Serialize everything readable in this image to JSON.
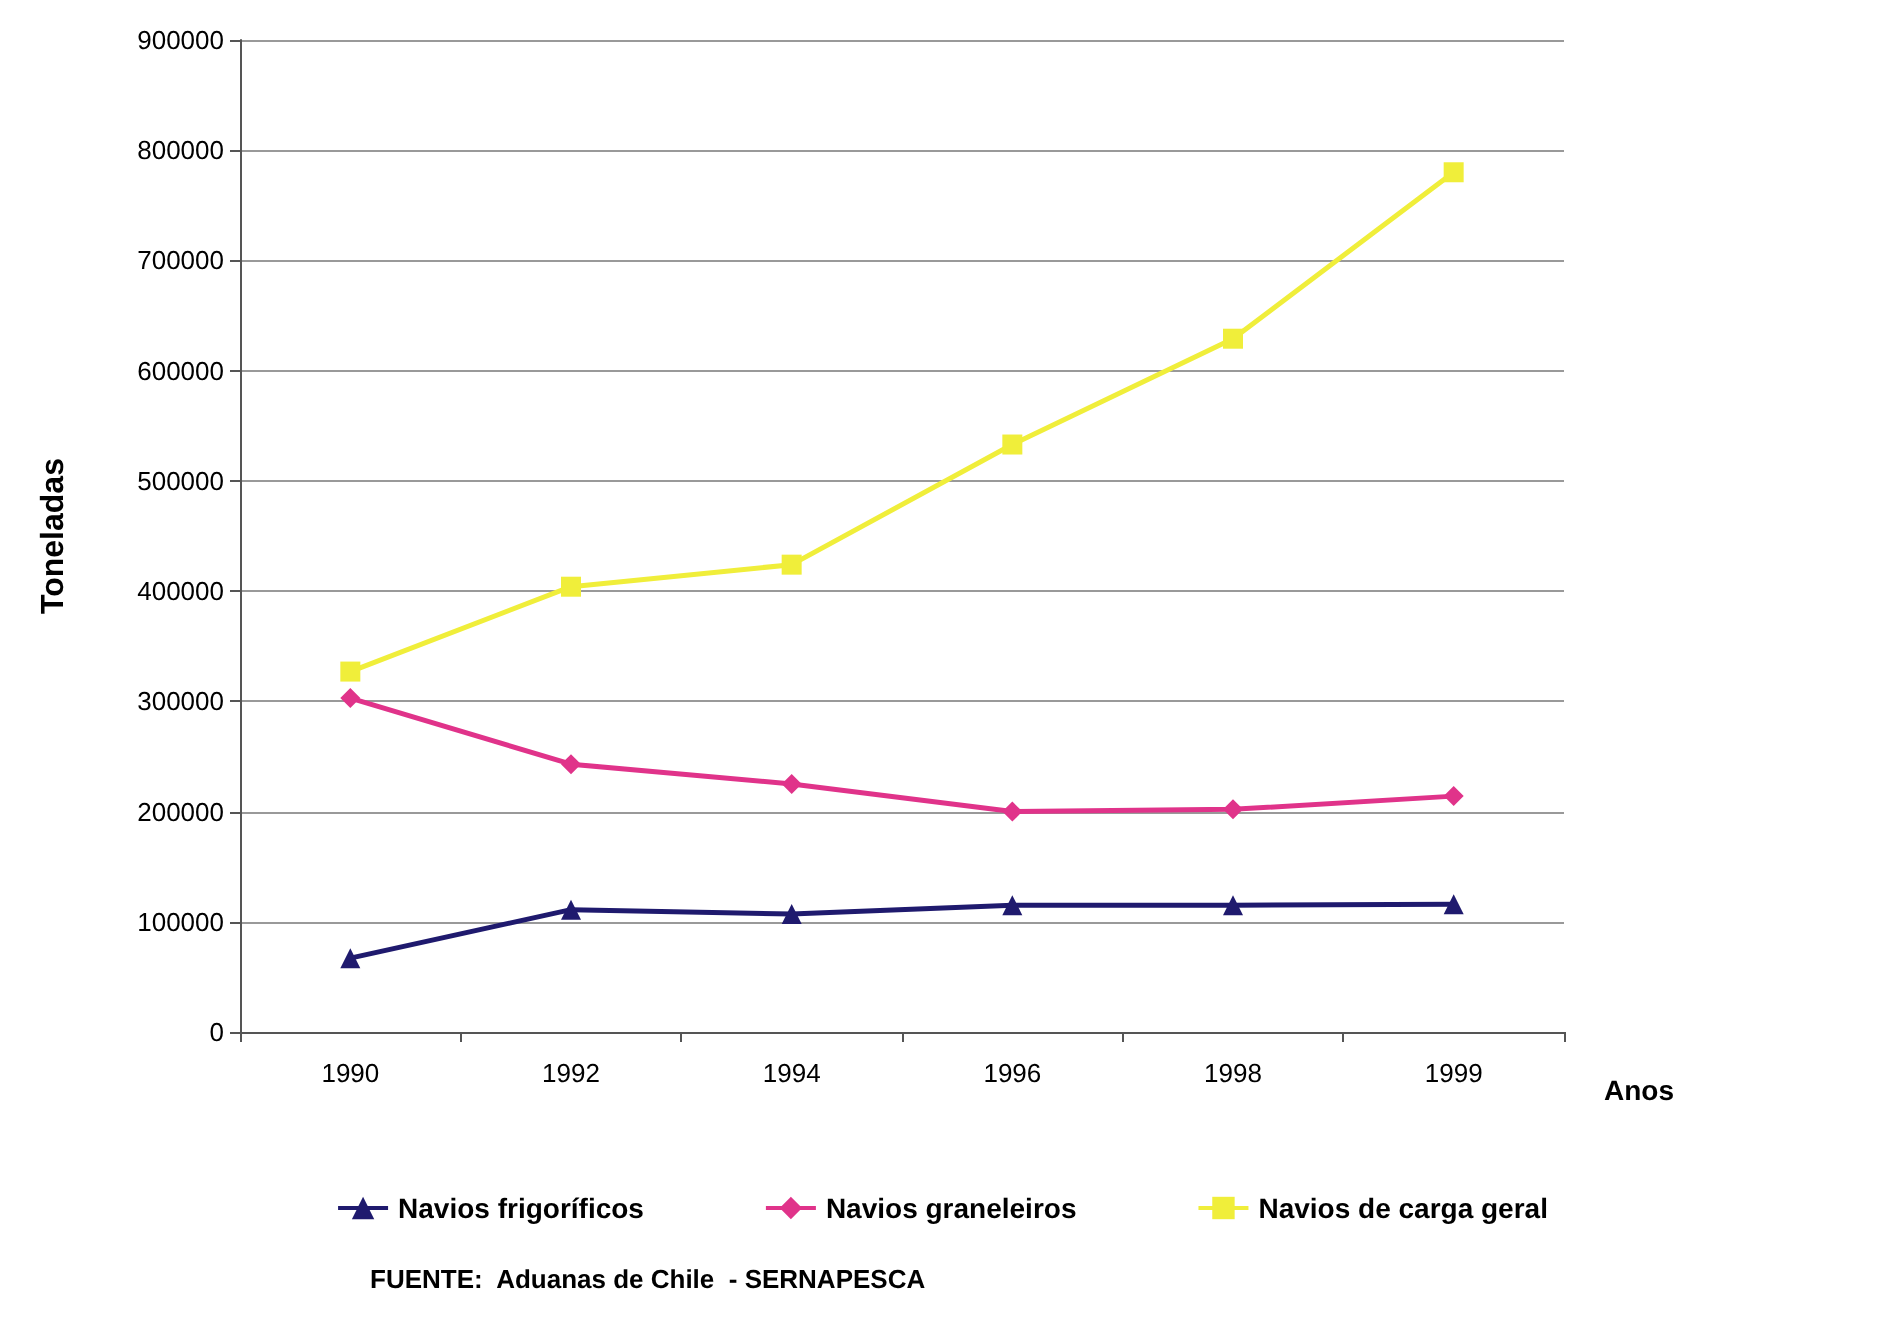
{
  "chart_data": {
    "type": "line",
    "xlabel": "Anos",
    "ylabel": "Toneladas",
    "categories": [
      "1990",
      "1992",
      "1994",
      "1996",
      "1998",
      "1999"
    ],
    "series": [
      {
        "name": "Navios frigoríficos",
        "color": "#1f1a6e",
        "marker": "triangle",
        "values": [
          67000,
          111000,
          107000,
          115000,
          115000,
          116000
        ]
      },
      {
        "name": "Navios graneleiros",
        "color": "#e0338a",
        "marker": "diamond",
        "values": [
          303000,
          243000,
          225000,
          200000,
          202000,
          214000
        ]
      },
      {
        "name": "Navios de carga geral",
        "color": "#f0ee3a",
        "marker": "square",
        "values": [
          327000,
          404000,
          424000,
          533000,
          629000,
          780000
        ]
      }
    ],
    "ylim": [
      0,
      900000
    ],
    "yticks": [
      0,
      100000,
      200000,
      300000,
      400000,
      500000,
      600000,
      700000,
      800000,
      900000
    ],
    "grid": "y",
    "legend": "bottom",
    "annotations": [
      "FUENTE:  Aduanas de Chile  - SERNAPESCA"
    ]
  }
}
